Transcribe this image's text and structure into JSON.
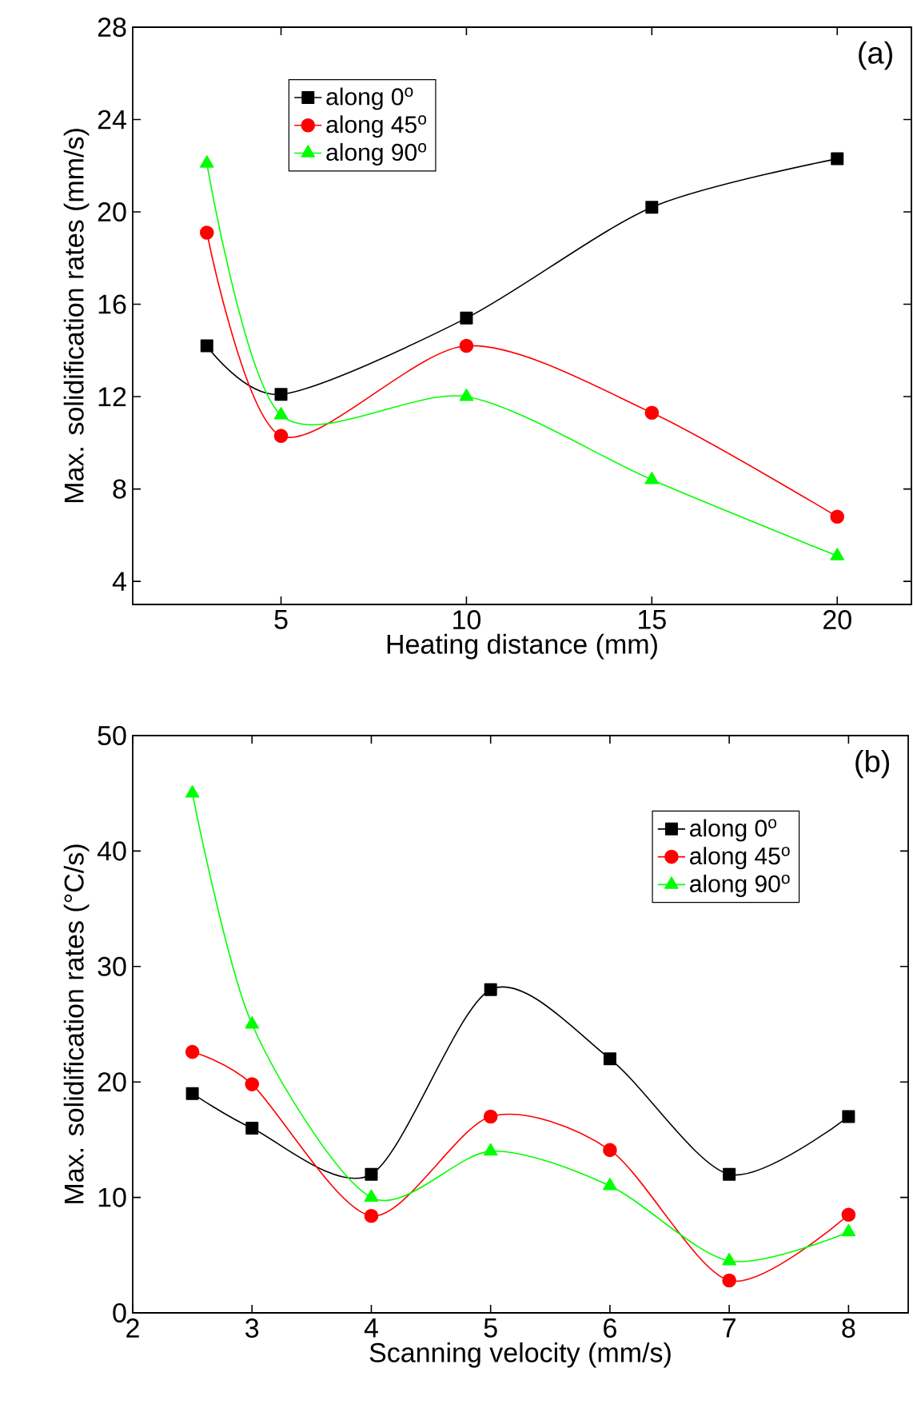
{
  "chart_data": [
    {
      "type": "line",
      "xlabel": "Heating distance (mm)",
      "ylabel": "Max. solidification rates (mm/s)",
      "annotations": [
        "(a)"
      ],
      "x": [
        3,
        5,
        10,
        15,
        20
      ],
      "series": [
        {
          "name": "along 0$^{o}$",
          "color": "#000000",
          "marker": "square",
          "values": [
            14.2,
            12.1,
            15.4,
            20.2,
            22.3
          ]
        },
        {
          "name": "along 45$^{o}$",
          "color": "#ff0000",
          "marker": "circle",
          "values": [
            19.1,
            10.3,
            14.2,
            11.3,
            6.8
          ]
        },
        {
          "name": "along 90$^{o}$",
          "color": "#00ff00",
          "marker": "triangle",
          "values": [
            22.1,
            11.2,
            12.0,
            8.4,
            5.1
          ]
        }
      ],
      "xlim": [
        1,
        22
      ],
      "ylim": [
        3,
        28
      ],
      "xticks": [
        5,
        10,
        15,
        20
      ],
      "yticks": [
        4,
        8,
        12,
        16,
        20,
        24,
        28
      ],
      "legend": "top left",
      "line_style": "solid",
      "grid": false
    },
    {
      "type": "line",
      "xlabel": "Scanning velocity (mm/s)",
      "ylabel": "Max. solidification rates (°C/s)",
      "annotations": [
        "(b)"
      ],
      "x": [
        2.5,
        3,
        4,
        5,
        6,
        7,
        8
      ],
      "series": [
        {
          "name": "along 0$^{o}$",
          "color": "#000000",
          "marker": "square",
          "values": [
            19,
            16,
            12,
            28,
            22,
            12,
            17
          ]
        },
        {
          "name": "along 45$^{o}$",
          "color": "#ff0000",
          "marker": "circle",
          "values": [
            22.6,
            19.8,
            8.4,
            17,
            14.1,
            2.8,
            8.5
          ]
        },
        {
          "name": "along 90$^{o}$",
          "color": "#00ff00",
          "marker": "triangle",
          "values": [
            45,
            25,
            10,
            14,
            11,
            4.5,
            7
          ]
        }
      ],
      "xlim": [
        2,
        8.5
      ],
      "ylim": [
        0,
        50
      ],
      "xticks": [
        2,
        3,
        4,
        5,
        6,
        7,
        8
      ],
      "yticks": [
        0,
        10,
        20,
        30,
        40,
        50
      ],
      "legend": "top right",
      "line_style": "solid",
      "grid": false
    }
  ]
}
